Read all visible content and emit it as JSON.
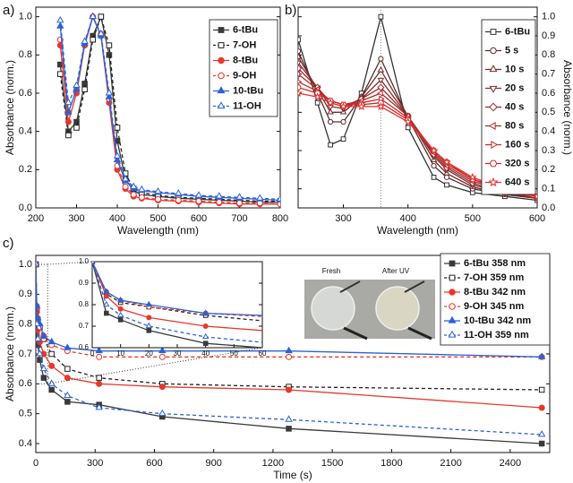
{
  "chart_data": [
    {
      "type": "line",
      "panel_label": "a)",
      "x_label": "Wavelength (nm)",
      "y_label": "Absorbance (norm.)",
      "xlim": [
        200,
        800
      ],
      "xticks": [
        200,
        300,
        400,
        500,
        600,
        700,
        800
      ],
      "ylim": [
        0,
        1.05
      ],
      "yticks": [
        {
          "value": 0,
          "label": "0.0"
        },
        0.2,
        0.4,
        0.6,
        0.8,
        {
          "value": 1,
          "label": "1.0"
        }
      ],
      "y_axis_side": "left",
      "x": [
        260,
        280,
        300,
        320,
        340,
        360,
        380,
        400,
        420,
        440,
        460,
        500,
        550,
        600,
        650,
        700,
        750,
        800
      ],
      "series": [
        {
          "name": "6-tBu",
          "color": "#3a3a3a",
          "marker": "square",
          "filled": true,
          "dashed": false,
          "values": [
            0.75,
            0.4,
            0.45,
            0.65,
            0.9,
            1.0,
            0.8,
            0.35,
            0.15,
            0.09,
            0.07,
            0.06,
            0.05,
            0.045,
            0.04,
            0.035,
            0.03,
            0.03
          ]
        },
        {
          "name": "7-OH",
          "color": "#222222",
          "marker": "square",
          "filled": false,
          "dashed": true,
          "values": [
            0.7,
            0.38,
            0.42,
            0.62,
            0.88,
            1.0,
            0.85,
            0.42,
            0.18,
            0.1,
            0.08,
            0.065,
            0.055,
            0.05,
            0.045,
            0.04,
            0.035,
            0.035
          ]
        },
        {
          "name": "8-tBu",
          "color": "#e8372b",
          "marker": "circle",
          "filled": true,
          "dashed": false,
          "values": [
            0.85,
            0.45,
            0.6,
            0.85,
            1.0,
            0.9,
            0.55,
            0.2,
            0.1,
            0.06,
            0.05,
            0.04,
            0.035,
            0.03,
            0.025,
            0.02,
            0.02,
            0.02
          ]
        },
        {
          "name": "9-OH",
          "color": "#e8372b",
          "marker": "circle",
          "filled": false,
          "dashed": true,
          "values": [
            0.88,
            0.5,
            0.62,
            0.86,
            1.0,
            0.91,
            0.57,
            0.22,
            0.11,
            0.07,
            0.055,
            0.045,
            0.04,
            0.035,
            0.03,
            0.025,
            0.025,
            0.02
          ]
        },
        {
          "name": "10-tBu",
          "color": "#2a62d6",
          "marker": "triangle",
          "filled": true,
          "dashed": false,
          "values": [
            0.95,
            0.5,
            0.62,
            0.86,
            1.0,
            0.9,
            0.58,
            0.25,
            0.14,
            0.1,
            0.09,
            0.08,
            0.07,
            0.06,
            0.055,
            0.05,
            0.045,
            0.04
          ]
        },
        {
          "name": "11-OH",
          "color": "#2a62d6",
          "marker": "triangle",
          "filled": false,
          "dashed": true,
          "values": [
            0.98,
            0.55,
            0.64,
            0.87,
            1.0,
            0.91,
            0.6,
            0.27,
            0.15,
            0.11,
            0.095,
            0.085,
            0.075,
            0.065,
            0.06,
            0.055,
            0.05,
            0.045
          ]
        }
      ]
    },
    {
      "type": "line",
      "panel_label": "b)",
      "x_label": "Wavelength (nm)",
      "y_label": "Absorbance (norm.)",
      "xlim": [
        230,
        600
      ],
      "xticks": [
        300,
        400,
        500,
        600
      ],
      "ylim": [
        0,
        1.05
      ],
      "yticks": [
        {
          "value": 0,
          "label": "0.0"
        },
        0.1,
        0.2,
        0.3,
        0.4,
        0.5,
        0.6,
        0.7,
        0.8,
        0.9,
        {
          "value": 1,
          "label": "1.0"
        }
      ],
      "y_axis_side": "right",
      "reference_line_x": 358,
      "x": [
        230,
        260,
        280,
        300,
        328,
        358,
        400,
        440,
        460,
        500,
        550,
        600
      ],
      "series": [
        {
          "name": "6-tBu",
          "color": "#333333",
          "marker": "square",
          "filled": false,
          "dashed": false,
          "values": [
            0.88,
            0.55,
            0.33,
            0.36,
            0.6,
            1.0,
            0.42,
            0.16,
            0.12,
            0.08,
            0.06,
            0.04
          ]
        },
        {
          "name": "5 s",
          "color": "#5a2e2e",
          "marker": "circle",
          "filled": false,
          "dashed": false,
          "values": [
            0.82,
            0.6,
            0.45,
            0.45,
            0.58,
            0.78,
            0.47,
            0.22,
            0.16,
            0.1,
            0.07,
            0.05
          ]
        },
        {
          "name": "10 s",
          "color": "#6e2d2d",
          "marker": "triangle",
          "filled": false,
          "dashed": false,
          "values": [
            0.79,
            0.62,
            0.5,
            0.5,
            0.58,
            0.72,
            0.48,
            0.25,
            0.18,
            0.11,
            0.07,
            0.05
          ]
        },
        {
          "name": "20 s",
          "color": "#822b2b",
          "marker": "triangle-down",
          "filled": false,
          "dashed": false,
          "values": [
            0.76,
            0.63,
            0.53,
            0.52,
            0.57,
            0.67,
            0.48,
            0.27,
            0.2,
            0.12,
            0.08,
            0.05
          ]
        },
        {
          "name": "40 s",
          "color": "#972a2a",
          "marker": "diamond",
          "filled": false,
          "dashed": false,
          "values": [
            0.73,
            0.63,
            0.55,
            0.53,
            0.57,
            0.63,
            0.48,
            0.28,
            0.21,
            0.13,
            0.08,
            0.05
          ]
        },
        {
          "name": "80 s",
          "color": "#ab2a2a",
          "marker": "triangle-left",
          "filled": false,
          "dashed": false,
          "values": [
            0.7,
            0.62,
            0.56,
            0.54,
            0.56,
            0.6,
            0.48,
            0.29,
            0.22,
            0.14,
            0.09,
            0.05
          ]
        },
        {
          "name": "160 s",
          "color": "#bf2a2a",
          "marker": "triangle-right",
          "filled": false,
          "dashed": false,
          "values": [
            0.66,
            0.61,
            0.56,
            0.54,
            0.55,
            0.57,
            0.47,
            0.3,
            0.23,
            0.15,
            0.09,
            0.06
          ]
        },
        {
          "name": "320 s",
          "color": "#d32b2b",
          "marker": "hexagon",
          "filled": false,
          "dashed": false,
          "values": [
            0.63,
            0.6,
            0.56,
            0.54,
            0.54,
            0.55,
            0.46,
            0.3,
            0.24,
            0.15,
            0.1,
            0.06
          ]
        },
        {
          "name": "640 s",
          "color": "#e53030",
          "marker": "star",
          "filled": false,
          "dashed": false,
          "values": [
            0.6,
            0.58,
            0.55,
            0.53,
            0.53,
            0.53,
            0.45,
            0.3,
            0.24,
            0.16,
            0.1,
            0.06
          ]
        }
      ]
    },
    {
      "type": "line",
      "panel_label": "c)",
      "x_label": "Time (s)",
      "y_label": "Absorbance (norm.)",
      "xlim": [
        0,
        2600
      ],
      "xticks": [
        0,
        300,
        600,
        900,
        1200,
        1500,
        1800,
        2100,
        2400
      ],
      "ylim": [
        0.37,
        1.03
      ],
      "yticks": [
        0.4,
        0.5,
        0.6,
        0.7,
        0.8,
        0.9,
        {
          "value": 1,
          "label": "1.0"
        }
      ],
      "y_axis_side": "left",
      "x": [
        0,
        5,
        10,
        20,
        40,
        80,
        160,
        320,
        640,
        1280,
        2560
      ],
      "series": [
        {
          "name": "6-tBu 358 nm",
          "color": "#3a3a3a",
          "marker": "square",
          "filled": true,
          "dashed": false,
          "values": [
            1.0,
            0.76,
            0.73,
            0.68,
            0.62,
            0.58,
            0.54,
            0.53,
            0.49,
            0.45,
            0.4
          ]
        },
        {
          "name": "7-OH 359 nm",
          "color": "#222222",
          "marker": "square",
          "filled": false,
          "dashed": true,
          "values": [
            1.0,
            0.85,
            0.81,
            0.79,
            0.75,
            0.7,
            0.65,
            0.62,
            0.6,
            0.59,
            0.58
          ]
        },
        {
          "name": "8-tBu 342 nm",
          "color": "#e8372b",
          "marker": "circle",
          "filled": true,
          "dashed": false,
          "values": [
            1.0,
            0.84,
            0.78,
            0.74,
            0.7,
            0.66,
            0.62,
            0.6,
            0.59,
            0.58,
            0.52
          ]
        },
        {
          "name": "9-OH 345 nm",
          "color": "#e8372b",
          "marker": "circle",
          "filled": false,
          "dashed": true,
          "values": [
            1.0,
            0.86,
            0.82,
            0.79,
            0.76,
            0.73,
            0.71,
            0.69,
            0.69,
            0.69,
            0.69
          ]
        },
        {
          "name": "10-tBu 342 nm",
          "color": "#2a62d6",
          "marker": "triangle",
          "filled": true,
          "dashed": false,
          "values": [
            1.0,
            0.86,
            0.82,
            0.8,
            0.76,
            0.74,
            0.72,
            0.71,
            0.71,
            0.71,
            0.69
          ]
        },
        {
          "name": "11-OH 359 nm",
          "color": "#2a62d6",
          "marker": "triangle",
          "filled": false,
          "dashed": true,
          "values": [
            1.0,
            0.8,
            0.75,
            0.7,
            0.65,
            0.6,
            0.56,
            0.52,
            0.5,
            0.48,
            0.43
          ]
        }
      ],
      "inset": {
        "xlim": [
          0,
          60
        ],
        "xticks": [
          0,
          10,
          20,
          30,
          40,
          50,
          60
        ],
        "ylim": [
          0.6,
          1.0
        ],
        "yticks": [
          0.6,
          0.7,
          0.8,
          0.9,
          {
            "value": 1,
            "label": "1.0"
          }
        ]
      },
      "photo_labels": [
        "Fresh",
        "After UV"
      ]
    }
  ]
}
